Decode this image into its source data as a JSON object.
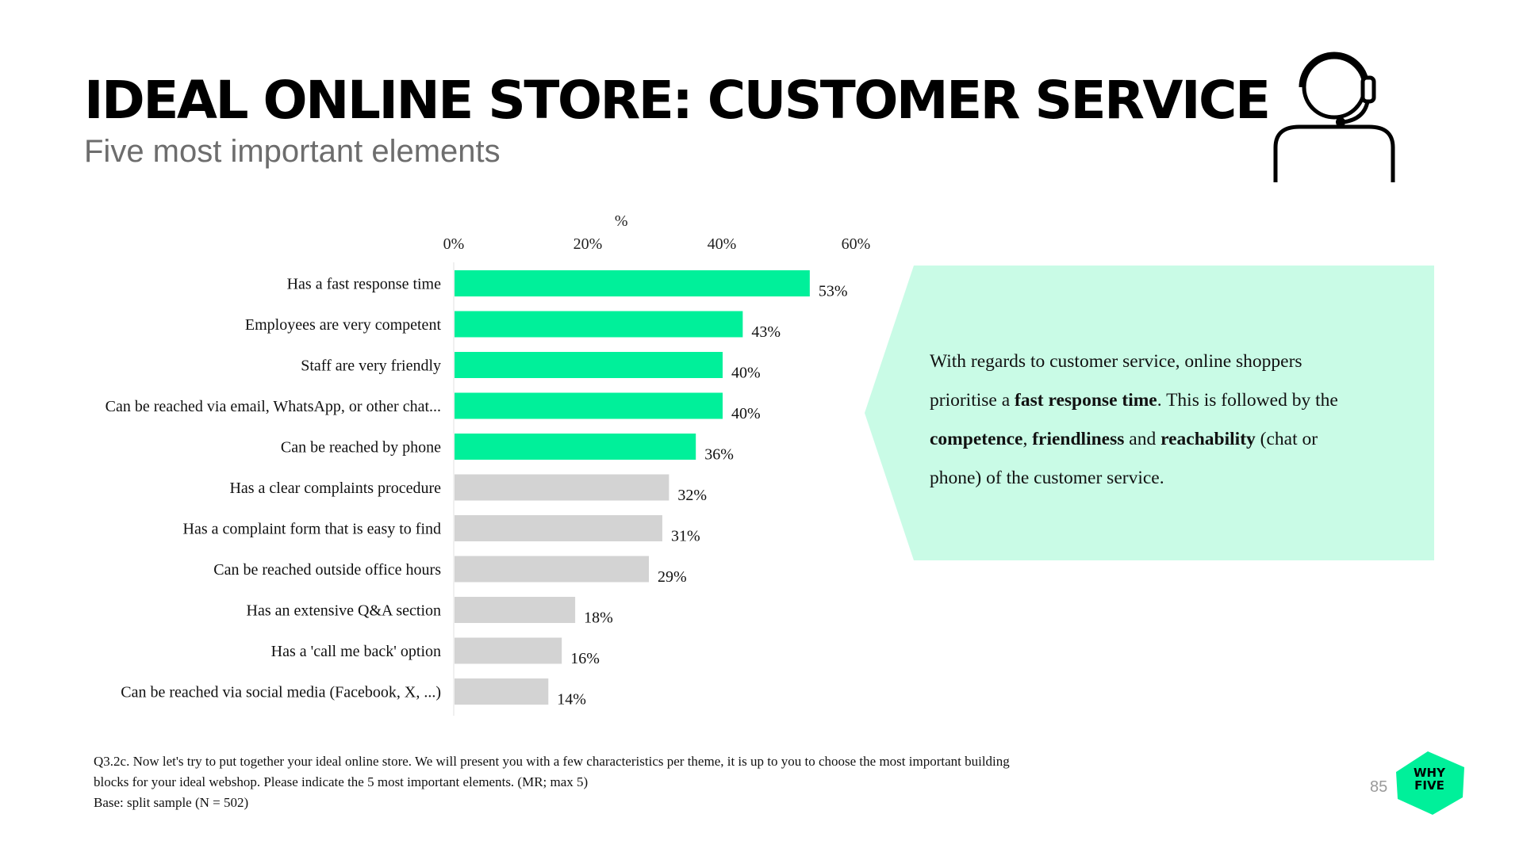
{
  "header": {
    "title": "IDEAL ONLINE STORE: CUSTOMER SERVICE",
    "subtitle": "Five most important elements"
  },
  "icons": {
    "header_icon": "customer-service-headset-icon"
  },
  "callout": {
    "line1": "With regards to customer service, online shoppers",
    "line2_a": "prioritise a ",
    "line2_b": "fast response time",
    "line2_c": ". This is followed by the",
    "line3_a": "competence",
    "line3_b": ", ",
    "line3_c": "friendliness",
    "line3_d": " and ",
    "line3_e": "reachability",
    "line3_f": " (chat or",
    "line4": "phone) of the customer service."
  },
  "footnote": {
    "line1": "Q3.2c. Now let's try to put together your ideal online store. We will present you with a few characteristics per theme, it is up to you to choose the most important building",
    "line2": "blocks for your ideal webshop. Please indicate the 5 most important elements. (MR; max 5)",
    "line3": "Base: split sample (N = 502)"
  },
  "page_number": "85",
  "logo": {
    "line1": "WHY",
    "line2": "FIVE"
  },
  "colors": {
    "highlight": "#00f09a",
    "other": "#d3d3d3",
    "callout_bg": "#c9fbe6",
    "logo": "#00f09a"
  },
  "chart_data": {
    "type": "bar",
    "orientation": "horizontal",
    "axis_title": "%",
    "xlim": [
      0,
      60
    ],
    "ticks": [
      0,
      20,
      40,
      60
    ],
    "tick_labels": [
      "0%",
      "20%",
      "40%",
      "60%"
    ],
    "categories": [
      "Has a fast response time",
      "Employees are very competent",
      "Staff are very friendly",
      "Can be reached via email, WhatsApp, or other chat...",
      "Can be reached by phone",
      "Has a clear complaints procedure",
      "Has a complaint form that is easy to find",
      "Can be reached outside office hours",
      "Has an extensive Q&A section",
      "Has a 'call me back' option",
      "Can be reached via social media (Facebook, X, ...)"
    ],
    "values": [
      53,
      43,
      40,
      40,
      36,
      32,
      31,
      29,
      18,
      16,
      14
    ],
    "value_labels": [
      "53%",
      "43%",
      "40%",
      "40%",
      "36%",
      "32%",
      "31%",
      "29%",
      "18%",
      "16%",
      "14%"
    ],
    "highlighted_top": 5,
    "grid": false,
    "legend": "none"
  }
}
